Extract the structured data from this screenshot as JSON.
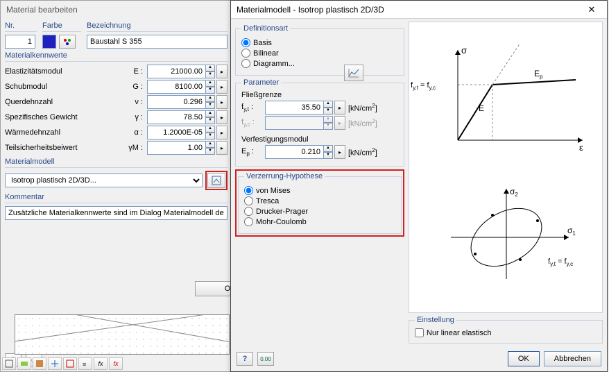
{
  "left": {
    "window_title": "Material bearbeiten",
    "top": {
      "nr_label": "Nr.",
      "nr_value": "1",
      "farbe_label": "Farbe",
      "farbe_value": "#2020c0",
      "bez_label": "Bezeichnung",
      "bez_value": "Baustahl S 355"
    },
    "kennwerte": {
      "heading": "Materialkennwerte",
      "rows": [
        {
          "label": "Elastizitätsmodul",
          "sym": "E :",
          "value": "21000.00"
        },
        {
          "label": "Schubmodul",
          "sym": "G :",
          "value": "8100.00"
        },
        {
          "label": "Querdehnzahl",
          "sym": "ν :",
          "value": "0.296"
        },
        {
          "label": "Spezifisches Gewicht",
          "sym": "γ :",
          "value": "78.50"
        },
        {
          "label": "Wärmedehnzahl",
          "sym": "α :",
          "value": "1.2000E-05"
        },
        {
          "label": "Teilsicherheitsbeiwert",
          "sym": "γM :",
          "value": "1.00"
        }
      ]
    },
    "materialmodell": {
      "heading": "Materialmodell",
      "value": "Isotrop plastisch 2D/3D..."
    },
    "kommentar": {
      "heading": "Kommentar",
      "value": "Zusätzliche Materialkennwerte sind im Dialog Materialmodell defin"
    },
    "ok_label": "O"
  },
  "right": {
    "window_title": "Materialmodell - Isotrop plastisch 2D/3D",
    "def": {
      "heading": "Definitionsart",
      "options": [
        "Basis",
        "Bilinear",
        "Diagramm..."
      ],
      "selected": "Basis"
    },
    "param": {
      "heading": "Parameter",
      "fliess_label": "Fließgrenze",
      "fyt_label": "f y,t :",
      "fyt_value": "35.50",
      "fyc_label": "f y,c :",
      "fyc_value": "",
      "verf_label": "Verfestigungsmodul",
      "ep_label": "E p :",
      "ep_value": "0.210",
      "unit": "[kN/cm²]"
    },
    "hyp": {
      "heading": "Verzerrung-Hypothese",
      "options": [
        "von Mises",
        "Tresca",
        "Drucker-Prager",
        "Mohr-Coulomb"
      ],
      "selected": "von Mises"
    },
    "einst": {
      "heading": "Einstellung",
      "chk_label": "Nur linear elastisch",
      "chk_checked": false
    },
    "diagram": {
      "sigma": "σ",
      "epsilon": "ε",
      "sigma1": "σ₁",
      "sigma2": "σ₂",
      "ep": "Ep",
      "e": "E",
      "fyt_eq": "f y,t = f y,c",
      "colors": {
        "axis": "#000",
        "curve": "#000",
        "dash": "#888",
        "bg": "#fffff5"
      }
    },
    "ok_label": "OK",
    "cancel_label": "Abbrechen"
  }
}
